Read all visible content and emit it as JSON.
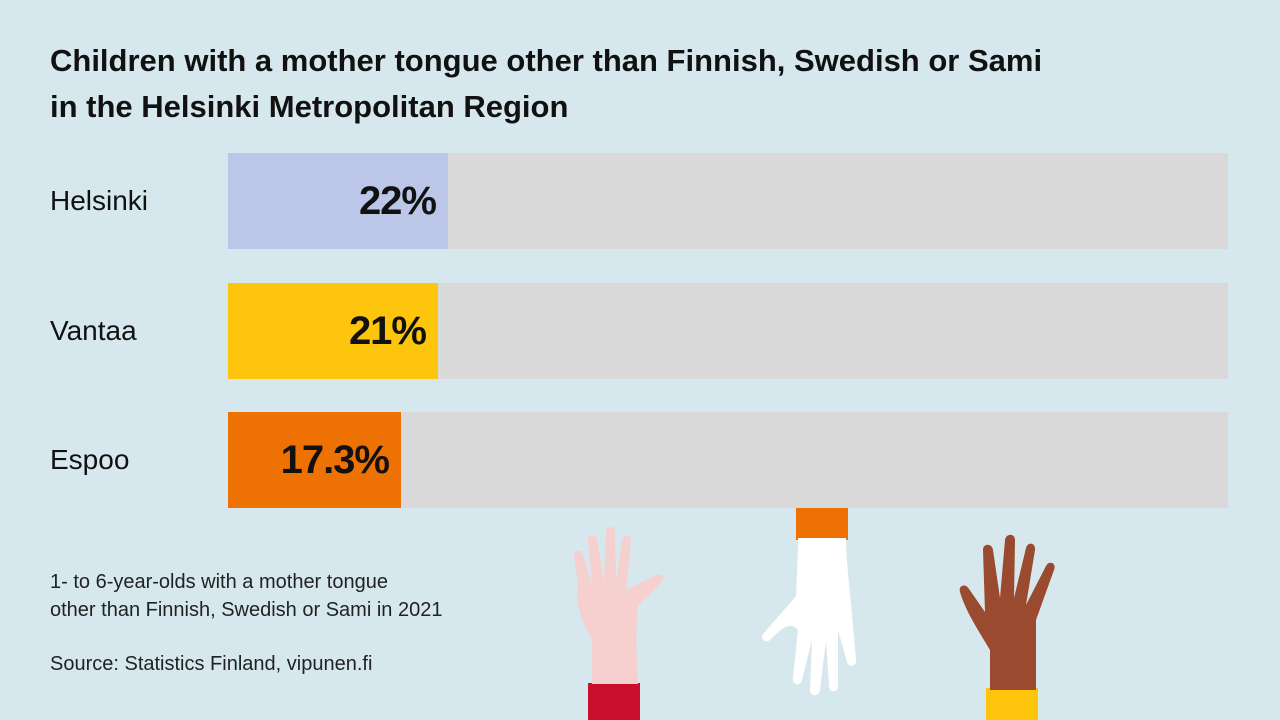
{
  "chart_data": {
    "type": "bar",
    "orientation": "horizontal",
    "title": "Children with a mother tongue other than Finnish, Swedish or Sami in the Helsinki Metropolitan Region",
    "categories": [
      "Helsinki",
      "Vantaa",
      "Espoo"
    ],
    "values": [
      22,
      21,
      17.3
    ],
    "value_labels": [
      "22%",
      "21%",
      "17.3%"
    ],
    "bar_colors": [
      "#bcc6e8",
      "#fdc60c",
      "#ee7203"
    ],
    "xlim": [
      0,
      100
    ],
    "track_color": "#d9d9d9",
    "grid": false
  },
  "notes": {
    "line1": "1- to 6-year-olds with a mother tongue",
    "line2": "other than Finnish, Swedish or Sami in 2021",
    "source": "Source: Statistics Finland, vipunen.fi"
  },
  "colors": {
    "background": "#d6e8ee",
    "hand_light_pink": "#f6cfcf",
    "hand_white": "#ffffff",
    "hand_brown": "#9a4a2e"
  },
  "icons": [
    "raised-hand-pink-icon",
    "raised-hand-white-icon",
    "raised-hand-brown-icon"
  ]
}
